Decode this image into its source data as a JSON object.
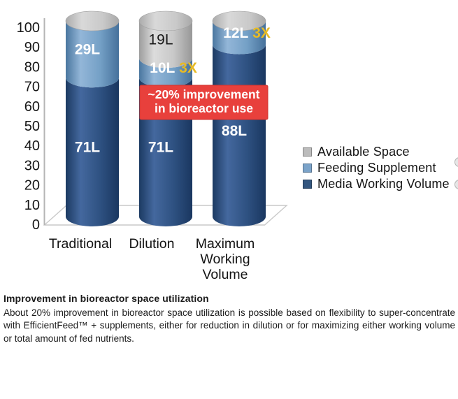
{
  "chart_data": {
    "type": "bar",
    "subtype": "stacked-3d-cylinder",
    "title": "",
    "ylim": [
      0,
      100
    ],
    "yticks": [
      0,
      10,
      20,
      30,
      40,
      50,
      60,
      70,
      80,
      90,
      100
    ],
    "grid": false,
    "categories": [
      {
        "label_lines": [
          "Traditional"
        ]
      },
      {
        "label_lines": [
          "Dilution"
        ]
      },
      {
        "label_lines": [
          "Maximum",
          "Working",
          "Volume"
        ]
      }
    ],
    "series": [
      {
        "name": "Media Working Volume",
        "color": "#2e5181",
        "values": [
          71,
          71,
          88
        ]
      },
      {
        "name": "Feeding Supplement",
        "color": "#74a0c6",
        "values": [
          29,
          10,
          12
        ]
      },
      {
        "name": "Available Space",
        "color": "#c6c6c6",
        "values": [
          0,
          19,
          0
        ]
      }
    ],
    "series_gradients": [
      [
        "#1c3a62",
        "#44689e",
        "#2e5181",
        "#1a3760"
      ],
      [
        "#4a769f",
        "#93b6d8",
        "#74a0c6",
        "#46719b"
      ],
      [
        "#9d9d9d",
        "#dcdcdc",
        "#c8c8c8",
        "#979797"
      ]
    ],
    "cap_gradient": [
      "#ababab",
      "#d9d9d9",
      "#c9c9c9",
      "#a8a8a8"
    ],
    "bar_labels": [
      {
        "bar": 0,
        "series": 0,
        "text": "71L",
        "color": "#ffffff",
        "bold": true
      },
      {
        "bar": 0,
        "series": 1,
        "text": "29L",
        "color": "#ffffff",
        "bold": true
      },
      {
        "bar": 1,
        "series": 0,
        "text": "71L",
        "color": "#ffffff",
        "bold": true
      },
      {
        "bar": 1,
        "series": 1,
        "text": "10L",
        "suffix": "3X",
        "color": "#ffffff",
        "suffix_color": "#e7ba25",
        "bold": true
      },
      {
        "bar": 1,
        "series": 2,
        "text": "19L",
        "color": "#1a1a1a",
        "bold": false
      },
      {
        "bar": 2,
        "series": 0,
        "text": "88L",
        "color": "#ffffff",
        "bold": true
      },
      {
        "bar": 2,
        "series": 1,
        "text": "12L",
        "suffix": "3X",
        "color": "#ffffff",
        "suffix_color": "#e7ba25",
        "bold": true
      }
    ],
    "annotation": {
      "lines": [
        "~20% improvement",
        "in bioreactor use"
      ],
      "bg_color": "#e8403c",
      "border_color": "#cf3531",
      "text_color": "#ffffff"
    },
    "legend": {
      "position": "right",
      "items": [
        {
          "label": "Available Space",
          "color": "#bcbcbc"
        },
        {
          "label": "Feeding Supplement",
          "color": "#7ba3c9"
        },
        {
          "label": "Media Working Volume",
          "color": "#33567f"
        }
      ]
    },
    "axis_color": "#b5b5b5",
    "floor_color": "#c9c9c9"
  },
  "caption": {
    "title": "Improvement in bioreactor space utilization",
    "body": "About 20% improvement in bioreactor space utilization is possible based on flexibility to super-concentrate with EfficientFeed™ + supplements, either for reduction in dilution or for maximizing either working volume or total amount of fed nutrients."
  },
  "decor": {
    "edge_dots": [
      "partial-circle-top",
      "partial-circle-bottom"
    ]
  }
}
